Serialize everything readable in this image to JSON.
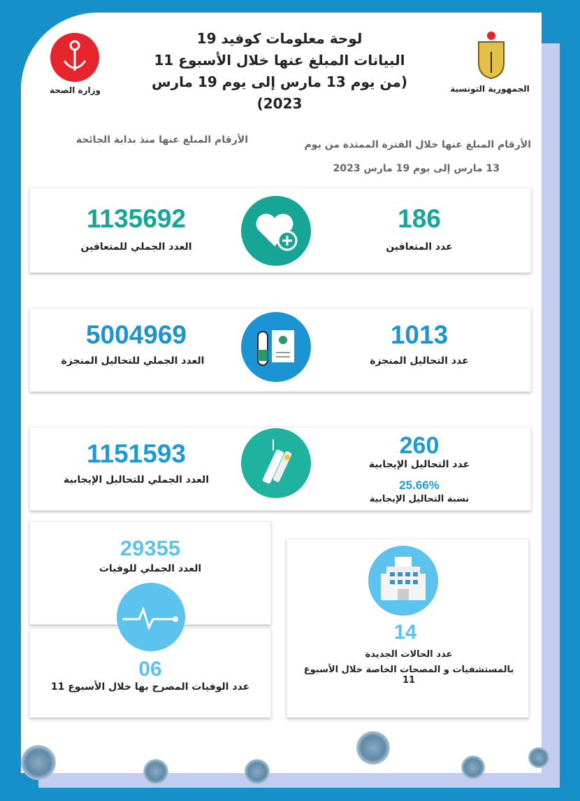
{
  "header": {
    "title_line1": "لوحة معلومات كوفيد 19",
    "title_line2": "البيانات المبلغ عنها خلال الأسبوع 11",
    "title_line3": "(من يوم 13 مارس إلى يوم 19 مارس 2023)",
    "ministry_label": "وزارة الصحة",
    "republic_label": "الجمهورية التونسية"
  },
  "subheaders": {
    "weekly_line1": "الأرقام المبلغ عنها خلال الفترة الممتدة من يوم",
    "weekly_line2": "13 مارس إلى يوم 19  مارس  2023",
    "cumulative": "الأرقام المبلغ عنها منذ بداية الجائحة"
  },
  "rows": [
    {
      "weekly_value": "186",
      "weekly_label": "عدد المتعافين",
      "total_value": "1135692",
      "total_label": "العدد الجملي للمتعافين",
      "icon": "heart-plus-icon",
      "color": "#17a596"
    },
    {
      "weekly_value": "1013",
      "weekly_label": "عدد التحاليل المنجزة",
      "total_value": "5004969",
      "total_label": "العدد الجملي للتحاليل المنجزة",
      "icon": "test-tube-report-icon",
      "color": "#1c93d2"
    },
    {
      "weekly_value": "260",
      "weekly_label": "عدد التحاليل الإيجابية",
      "rate_value": "25.66%",
      "rate_label": "نسبة التحاليل الإيجابية",
      "total_value": "1151593",
      "total_label": "العدد الجملي للتحاليل الإيجابية",
      "icon": "swab-test-icon",
      "color": "#1c9ad8"
    }
  ],
  "deaths": {
    "total_value": "29355",
    "total_label": "العدد الجملي للوفيات",
    "weekly_value": "06",
    "weekly_label": "عدد الوفيات المصرح بها خلال الأسبوع 11",
    "color": "#5cc3ee"
  },
  "hospital": {
    "value": "14",
    "label_line1": "عدد الحالات الجديدة",
    "label_line2": "بالمستشفيات و المصحات الخاصة  خلال الأسبوع 11",
    "color": "#5cc3ee"
  }
}
